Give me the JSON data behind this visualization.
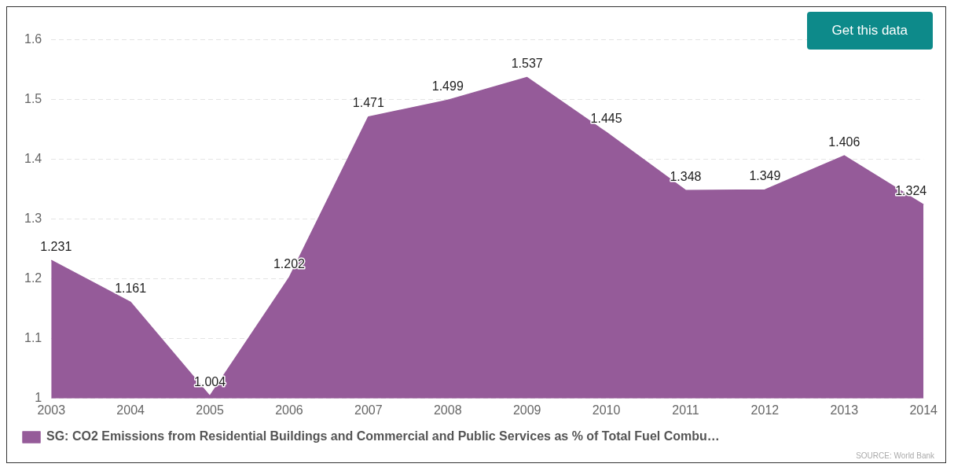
{
  "chart_data": {
    "type": "area",
    "categories": [
      "2003",
      "2004",
      "2005",
      "2006",
      "2007",
      "2008",
      "2009",
      "2010",
      "2011",
      "2012",
      "2013",
      "2014"
    ],
    "series": [
      {
        "name": "SG: CO2 Emissions from Residential Buildings and Commercial and Public Services as % of Total Fuel Combu…",
        "color": "#955b99",
        "values": [
          1.231,
          1.161,
          1.004,
          1.202,
          1.471,
          1.499,
          1.537,
          1.445,
          1.348,
          1.349,
          1.406,
          1.324
        ]
      }
    ],
    "ylim": [
      1,
      1.6
    ],
    "yticks": [
      1,
      1.1,
      1.2,
      1.3,
      1.4,
      1.5,
      1.6
    ],
    "grid": "y",
    "legend": "bottom",
    "data_labels": true,
    "annotations": [
      "Get this data",
      "SOURCE: World Bank"
    ]
  }
}
